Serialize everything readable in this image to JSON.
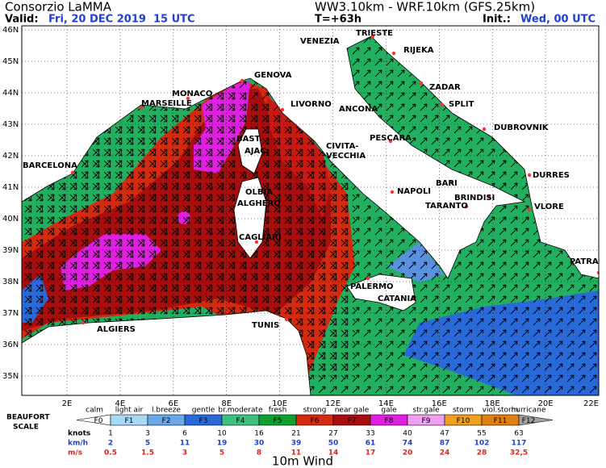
{
  "header": {
    "title": "Consorzio LaMMA",
    "model": "WW3.10km - WRF.10km (GFS.25km)",
    "valid_label": "Valid:",
    "valid": "Fri, 20 DEC 2019  15 UTC",
    "lead": "T=+63h",
    "init_label": "Init.:",
    "init": "Wed, 00 UTC"
  },
  "map": {
    "lat_labels": [
      "46N",
      "45N",
      "44N",
      "43N",
      "42N",
      "41N",
      "40N",
      "39N",
      "38N",
      "37N",
      "36N",
      "35N"
    ],
    "lon_labels": [
      "2E",
      "4E",
      "6E",
      "8E",
      "10E",
      "12E",
      "14E",
      "16E",
      "18E",
      "20E",
      "22E"
    ],
    "cities": [
      "TRIESTE",
      "VENEZIA",
      "RIJEKA",
      "GENOVA",
      "MONACO",
      "MARSEILLE",
      "LIVORNO",
      "ANCONA",
      "ZADAR",
      "SPLIT",
      "DUBROVNIK",
      "BAST.",
      "PESCARA",
      "CIVITA-",
      "VECCHIA",
      "AJAC.",
      "BARCELONA",
      "DURRES",
      "OLBIA",
      "BARI",
      "NAPOLI",
      "BRINDISI",
      "ALGHERO",
      "TARANTO",
      "VLORE",
      "CAGLIARI",
      "PATRAS",
      "PALERMO",
      "CATANIA",
      "ALGIERS",
      "TUNIS"
    ]
  },
  "legend": {
    "title_lines": [
      "BEAUFORT",
      "SCALE"
    ],
    "classes": [
      "calm",
      "light air",
      "l.breeze",
      "gentle",
      "br.moderate",
      "fresh",
      "strong",
      "near gale",
      "gale",
      "str.gale",
      "storm",
      "viol.storm",
      "hurricane"
    ],
    "forces": [
      "F0",
      "F1",
      "F2",
      "F3",
      "F4",
      "F5",
      "F6",
      "F7",
      "F8",
      "F9",
      "F10",
      "F11",
      "F12"
    ],
    "units": [
      "knots",
      "km/h",
      "m/s"
    ],
    "knots": [
      1,
      3,
      6,
      10,
      16,
      21,
      27,
      33,
      40,
      47,
      55,
      63
    ],
    "kmh": [
      2,
      5,
      11,
      19,
      30,
      39,
      50,
      61,
      74,
      87,
      102,
      117
    ],
    "ms": [
      0.5,
      1.5,
      3,
      5,
      8,
      11,
      14,
      17,
      20,
      24,
      28,
      "32,5"
    ]
  },
  "footer": "10m Wind"
}
